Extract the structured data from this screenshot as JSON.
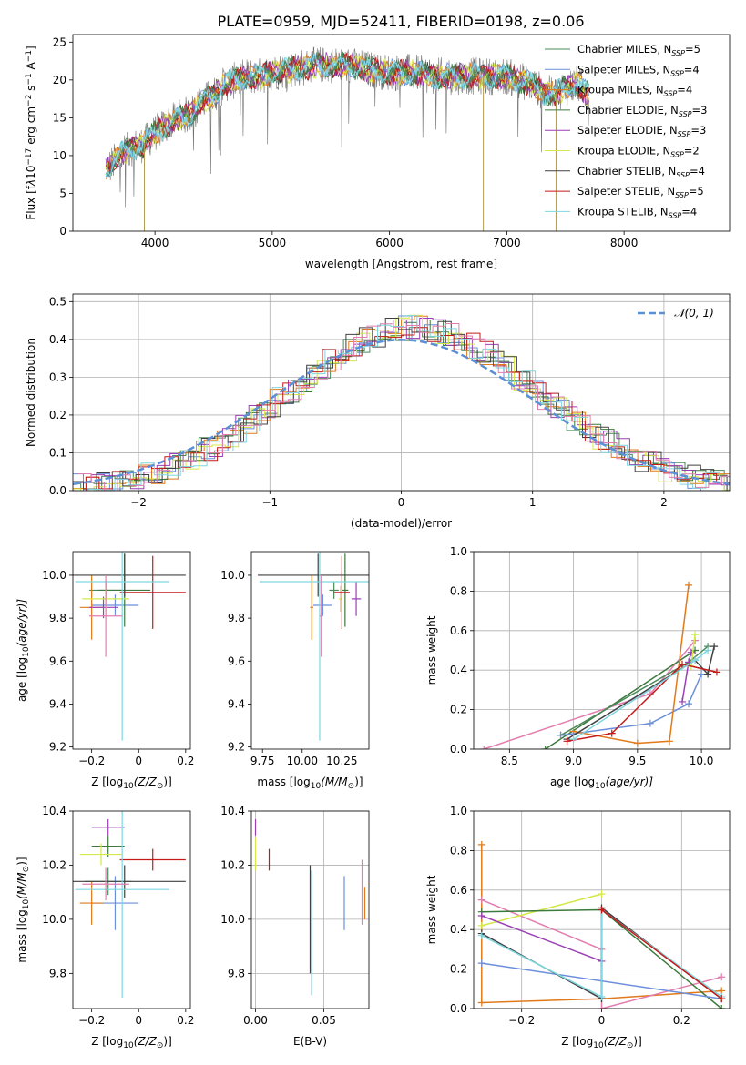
{
  "title": "PLATE=0959, MJD=52411, FIBERID=0198, z=0.06",
  "colors": {
    "chabrier_miles": "#4a8a5a",
    "salpeter_miles": "#6c8fdc",
    "kroupa_miles": "#e07a1a",
    "chabrier_elodie": "#3d7a3d",
    "salpeter_elodie": "#9b3fb5",
    "kroupa_elodie": "#d4e84a",
    "chabrier_stelib": "#404040",
    "salpeter_stelib": "#c41a1a",
    "kroupa_stelib": "#7fd6e0",
    "pink": "#e27db0",
    "normal": "#5b8fd6"
  },
  "chart_data": [
    {
      "id": "spectrum",
      "type": "line",
      "xlabel": "wavelength [Angstrom, rest frame]",
      "ylabel_pre": "Flux [f",
      "ylabel_post": "10",
      "ylabel_units": " erg cm",
      "ylabel_tail": " s",
      "ylabel_end": " A",
      "xlim": [
        3300,
        8900
      ],
      "ylim": [
        0,
        26
      ],
      "xticks": [
        4000,
        5000,
        6000,
        7000,
        8000
      ],
      "yticks": [
        0,
        5,
        10,
        15,
        20,
        25
      ],
      "legend_position": "top-right",
      "legend": [
        {
          "prefix": "Chabrier MILES, N",
          "n": "5"
        },
        {
          "prefix": "Salpeter MILES, N",
          "n": "4"
        },
        {
          "prefix": "Kroupa MILES, N",
          "n": "4"
        },
        {
          "prefix": "Chabrier ELODIE, N",
          "n": "3"
        },
        {
          "prefix": "Salpeter ELODIE, N",
          "n": "3"
        },
        {
          "prefix": "Kroupa ELODIE, N",
          "n": "2"
        },
        {
          "prefix": "Chabrier STELIB, N",
          "n": "4"
        },
        {
          "prefix": "Salpeter STELIB, N",
          "n": "5"
        },
        {
          "prefix": "Kroupa STELIB, N",
          "n": "4"
        }
      ],
      "subscript": "SSP",
      "continuum": {
        "x": [
          3580,
          3700,
          3800,
          3900,
          4000,
          4100,
          4200,
          4300,
          4400,
          4500,
          4600,
          4700,
          4800,
          4900,
          5000,
          5200,
          5400,
          5600,
          5800,
          6000,
          6200,
          6400,
          6600,
          6800,
          7000,
          7100,
          7200,
          7300,
          7400,
          7500,
          7600,
          7700
        ],
        "y": [
          8,
          10,
          11,
          11.5,
          13,
          14,
          15,
          15.5,
          17,
          18,
          19.5,
          20,
          20.5,
          20.5,
          21,
          21.5,
          22,
          22,
          21.5,
          21,
          21,
          20.5,
          20.5,
          20.5,
          20.5,
          20,
          19.5,
          18.5,
          18,
          19,
          19.5,
          18
        ]
      }
    },
    {
      "id": "residuals",
      "type": "line",
      "xlabel": "(data-model)/error",
      "ylabel": "Normed distribution",
      "xlim": [
        -2.5,
        2.5
      ],
      "ylim": [
        0,
        0.52
      ],
      "xticks": [
        -2,
        -1,
        0,
        1,
        2
      ],
      "yticks": [
        0.0,
        0.1,
        0.2,
        0.3,
        0.4,
        0.5
      ],
      "grid": true,
      "legend_position": "top-right",
      "legend_label": "𝒩(0, 1)"
    },
    {
      "id": "age_vs_Z",
      "type": "scatter",
      "xlabel_pre": "Z [log",
      "xlabel_post": "(Z/Z",
      "ylabel_pre": "age  [log",
      "ylabel_post": "(age/yr)]",
      "xlim": [
        -0.28,
        0.22
      ],
      "ylim": [
        9.19,
        10.11
      ],
      "xticks": [
        -0.2,
        0.0,
        0.2
      ],
      "yticks": [
        9.2,
        9.4,
        9.6,
        9.8,
        10.0
      ],
      "points": [
        {
          "c": "chabrier_miles",
          "x": -0.14,
          "y": 9.93,
          "xe": 0.07,
          "ye": 0.04
        },
        {
          "c": "salpeter_miles",
          "x": -0.1,
          "y": 9.86,
          "xe": 0.1,
          "ye": 0.05
        },
        {
          "c": "kroupa_miles",
          "x": -0.2,
          "y": 9.85,
          "xe": 0.05,
          "ye": 0.15
        },
        {
          "c": "chabrier_elodie",
          "x": -0.06,
          "y": 9.93,
          "xe": 0.11,
          "ye": 0.17
        },
        {
          "c": "salpeter_elodie",
          "x": -0.15,
          "y": 9.85,
          "xe": 0.06,
          "ye": 0.05
        },
        {
          "c": "kroupa_elodie",
          "x": -0.14,
          "y": 9.89,
          "xe": 0.1,
          "ye": 0.06
        },
        {
          "c": "chabrier_stelib",
          "x": -0.06,
          "y": 10.0,
          "xe": 0.26,
          "ye": 0.1
        },
        {
          "c": "salpeter_stelib",
          "x": 0.06,
          "y": 9.92,
          "xe": 0.14,
          "ye": 0.17
        },
        {
          "c": "kroupa_stelib",
          "x": -0.07,
          "y": 9.97,
          "xe": 0.2,
          "ye": 0.74
        },
        {
          "c": "pink",
          "x": -0.14,
          "y": 9.81,
          "xe": 0.07,
          "ye": 0.19
        }
      ]
    },
    {
      "id": "age_vs_mass",
      "type": "scatter",
      "xlabel_pre": "mass [log",
      "xlabel_post": "(M/M",
      "xlim": [
        9.68,
        10.42
      ],
      "ylim": [
        9.19,
        10.11
      ],
      "xticks": [
        9.75,
        10.0,
        10.25
      ],
      "yticks": [
        9.2,
        9.4,
        9.6,
        9.8,
        10.0
      ],
      "points": [
        {
          "c": "chabrier_miles",
          "x": 10.2,
          "y": 9.93,
          "xe": 0.03,
          "ye": 0.04
        },
        {
          "c": "salpeter_miles",
          "x": 10.13,
          "y": 9.86,
          "xe": 0.06,
          "ye": 0.05
        },
        {
          "c": "kroupa_miles",
          "x": 10.06,
          "y": 9.85,
          "xe": 0.01,
          "ye": 0.15
        },
        {
          "c": "chabrier_elodie",
          "x": 10.27,
          "y": 9.93,
          "xe": 0.02,
          "ye": 0.17
        },
        {
          "c": "salpeter_elodie",
          "x": 10.34,
          "y": 9.89,
          "xe": 0.03,
          "ye": 0.08
        },
        {
          "c": "kroupa_elodie",
          "x": 10.24,
          "y": 9.89,
          "xe": 0.01,
          "ye": 0.06
        },
        {
          "c": "chabrier_stelib",
          "x": 10.1,
          "y": 10.0,
          "xe": 0.38,
          "ye": 0.1
        },
        {
          "c": "salpeter_stelib",
          "x": 10.25,
          "y": 9.92,
          "xe": 0.05,
          "ye": 0.17
        },
        {
          "c": "kroupa_stelib",
          "x": 10.11,
          "y": 9.97,
          "xe": 0.38,
          "ye": 0.74
        },
        {
          "c": "pink",
          "x": 10.12,
          "y": 9.81,
          "xe": 0.01,
          "ye": 0.19
        }
      ]
    },
    {
      "id": "weight_vs_age",
      "type": "line",
      "xlabel_pre": "age  [log",
      "xlabel_post": "(age/yr)]",
      "ylabel": "mass weight",
      "xlim": [
        8.22,
        10.22
      ],
      "ylim": [
        0,
        1.0
      ],
      "xticks": [
        8.5,
        9.0,
        9.5,
        10.0
      ],
      "yticks": [
        0.0,
        0.2,
        0.4,
        0.6,
        0.8,
        1.0
      ],
      "grid": true,
      "series": [
        {
          "c": "pink",
          "x": [
            8.3,
            9.6,
            9.95
          ],
          "y": [
            0.0,
            0.28,
            0.55
          ]
        },
        {
          "c": "chabrier_elodie",
          "x": [
            8.78,
            9.95
          ],
          "y": [
            0.0,
            0.5
          ]
        },
        {
          "c": "chabrier_miles",
          "x": [
            8.9,
            9.9,
            10.05
          ],
          "y": [
            0.07,
            0.44,
            0.52
          ]
        },
        {
          "c": "salpeter_miles",
          "x": [
            8.9,
            9.6,
            9.9,
            10.0
          ],
          "y": [
            0.07,
            0.13,
            0.23,
            0.38
          ]
        },
        {
          "c": "kroupa_miles",
          "x": [
            9.0,
            9.5,
            9.75,
            9.9
          ],
          "y": [
            0.09,
            0.03,
            0.04,
            0.83
          ]
        },
        {
          "c": "salpeter_elodie",
          "x": [
            9.85,
            9.9,
            9.92
          ],
          "y": [
            0.24,
            0.44,
            0.49
          ]
        },
        {
          "c": "kroupa_elodie",
          "x": [
            9.92,
            9.95
          ],
          "y": [
            0.42,
            0.58
          ]
        },
        {
          "c": "chabrier_stelib",
          "x": [
            8.95,
            9.95,
            10.05,
            10.1
          ],
          "y": [
            0.05,
            0.45,
            0.38,
            0.52
          ]
        },
        {
          "c": "salpeter_stelib",
          "x": [
            8.95,
            9.3,
            9.85,
            10.12
          ],
          "y": [
            0.04,
            0.08,
            0.43,
            0.39
          ]
        },
        {
          "c": "kroupa_stelib",
          "x": [
            9.0,
            9.95,
            10.05
          ],
          "y": [
            0.05,
            0.45,
            0.5
          ]
        }
      ]
    },
    {
      "id": "mass_vs_Z",
      "type": "scatter",
      "xlabel_pre": "Z [log",
      "xlabel_post": "(Z/Z",
      "ylabel_pre": "mass [log",
      "ylabel_post": "(M/M",
      "xlim": [
        -0.28,
        0.22
      ],
      "ylim": [
        9.67,
        10.4
      ],
      "xticks": [
        -0.2,
        0.0,
        0.2
      ],
      "yticks": [
        9.8,
        10.0,
        10.2,
        10.4
      ],
      "points": [
        {
          "c": "chabrier_miles",
          "x": -0.13,
          "y": 10.14,
          "xe": 0.1,
          "ye": 0.05
        },
        {
          "c": "salpeter_miles",
          "x": -0.1,
          "y": 10.06,
          "xe": 0.1,
          "ye": 0.1
        },
        {
          "c": "kroupa_miles",
          "x": -0.2,
          "y": 10.06,
          "xe": 0.05,
          "ye": 0.08
        },
        {
          "c": "chabrier_elodie",
          "x": -0.13,
          "y": 10.27,
          "xe": 0.07,
          "ye": 0.04
        },
        {
          "c": "salpeter_elodie",
          "x": -0.13,
          "y": 10.34,
          "xe": 0.07,
          "ye": 0.03
        },
        {
          "c": "kroupa_elodie",
          "x": -0.16,
          "y": 10.24,
          "xe": 0.09,
          "ye": 0.04
        },
        {
          "c": "chabrier_stelib",
          "x": -0.06,
          "y": 10.14,
          "xe": 0.26,
          "ye": 0.06
        },
        {
          "c": "salpeter_stelib",
          "x": 0.06,
          "y": 10.22,
          "xe": 0.14,
          "ye": 0.04
        },
        {
          "c": "kroupa_stelib",
          "x": -0.07,
          "y": 10.11,
          "xe": 0.2,
          "ye": 0.4
        },
        {
          "c": "pink",
          "x": -0.14,
          "y": 10.13,
          "xe": 0.1,
          "ye": 0.06
        }
      ]
    },
    {
      "id": "mass_vs_EBV",
      "type": "scatter",
      "xlabel": "E(B-V)",
      "xlim": [
        -0.003,
        0.083
      ],
      "ylim": [
        9.67,
        10.4
      ],
      "xticks": [
        0.0,
        0.05
      ],
      "yticks": [
        9.8,
        10.0,
        10.2,
        10.4
      ],
      "grid": true,
      "points": [
        {
          "c": "salpeter_elodie",
          "x": 0.0,
          "y": 10.34,
          "xe": 0,
          "ye": 0.03
        },
        {
          "c": "kroupa_elodie",
          "x": 0.0,
          "y": 10.24,
          "xe": 0,
          "ye": 0.06
        },
        {
          "c": "salpeter_stelib",
          "x": 0.01,
          "y": 10.22,
          "xe": 0,
          "ye": 0.04
        },
        {
          "c": "chabrier_stelib",
          "x": 0.04,
          "y": 10.0,
          "xe": 0,
          "ye": 0.2
        },
        {
          "c": "kroupa_stelib",
          "x": 0.041,
          "y": 9.95,
          "xe": 0,
          "ye": 0.23
        },
        {
          "c": "salpeter_miles",
          "x": 0.065,
          "y": 10.06,
          "xe": 0,
          "ye": 0.1
        },
        {
          "c": "pink",
          "x": 0.078,
          "y": 10.1,
          "xe": 0,
          "ye": 0.12
        },
        {
          "c": "kroupa_miles",
          "x": 0.08,
          "y": 10.06,
          "xe": 0,
          "ye": 0.06
        }
      ]
    },
    {
      "id": "weight_vs_Z",
      "type": "line",
      "xlabel_pre": "Z [log",
      "xlabel_post": "(Z/Z",
      "ylabel": "mass weight",
      "xlim": [
        -0.32,
        0.32
      ],
      "ylim": [
        0,
        1.0
      ],
      "xticks": [
        -0.2,
        0.0,
        0.2
      ],
      "yticks": [
        0.0,
        0.2,
        0.4,
        0.6,
        0.8,
        1.0
      ],
      "grid": true,
      "series": [
        {
          "c": "kroupa_miles",
          "x": [
            -0.3,
            -0.3,
            0.0,
            0.3
          ],
          "y": [
            0.83,
            0.03,
            0.05,
            0.09
          ]
        },
        {
          "c": "pink",
          "x": [
            -0.3,
            0.0,
            0.0,
            0.3
          ],
          "y": [
            0.55,
            0.3,
            0.0,
            0.16
          ]
        },
        {
          "c": "kroupa_elodie",
          "x": [
            -0.3,
            0.0
          ],
          "y": [
            0.42,
            0.58
          ]
        },
        {
          "c": "chabrier_elodie",
          "x": [
            -0.3,
            0.0,
            0.3
          ],
          "y": [
            0.49,
            0.5,
            0.0
          ]
        },
        {
          "c": "salpeter_elodie",
          "x": [
            -0.3,
            0.0
          ],
          "y": [
            0.47,
            0.24
          ]
        },
        {
          "c": "salpeter_miles",
          "x": [
            -0.3,
            0.3
          ],
          "y": [
            0.23,
            0.05
          ]
        },
        {
          "c": "chabrier_stelib",
          "x": [
            -0.3,
            0.0,
            0.0,
            0.3
          ],
          "y": [
            0.38,
            0.05,
            0.51,
            0.05
          ]
        },
        {
          "c": "kroupa_stelib",
          "x": [
            -0.3,
            0.0,
            0.0,
            0.3
          ],
          "y": [
            0.37,
            0.06,
            0.5,
            0.06
          ]
        },
        {
          "c": "salpeter_stelib",
          "x": [
            0.0,
            0.3
          ],
          "y": [
            0.5,
            0.05
          ]
        }
      ]
    }
  ]
}
